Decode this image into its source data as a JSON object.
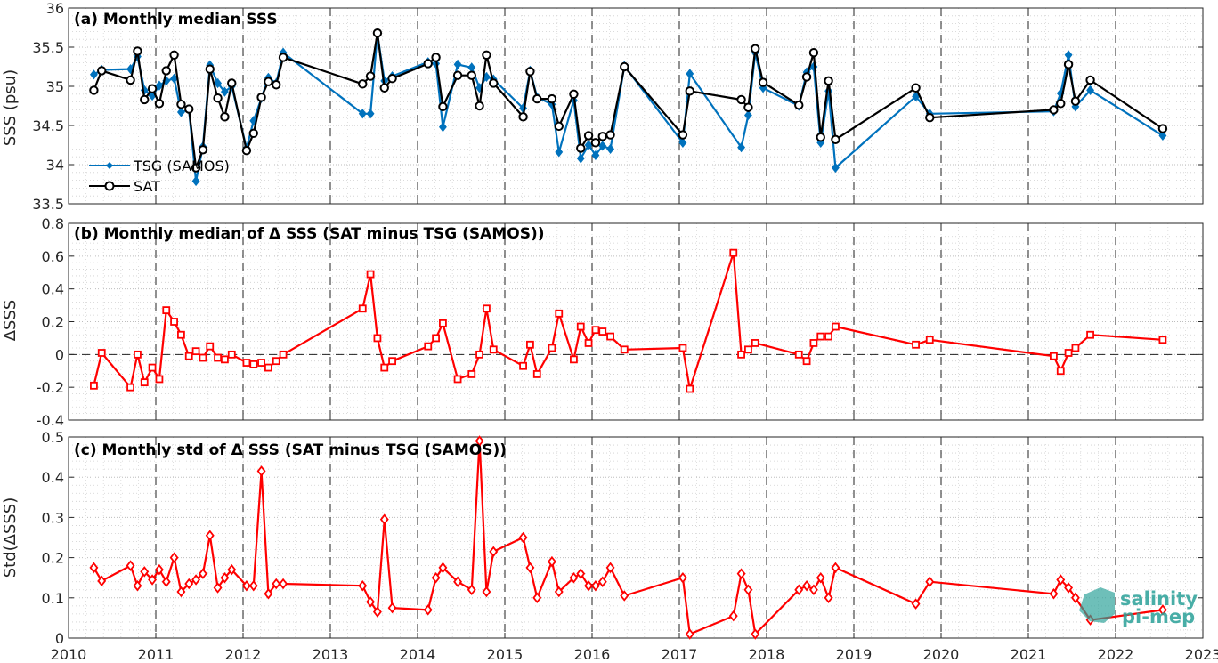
{
  "chart_data": [
    {
      "type": "line",
      "title": "(a) Monthly median SSS",
      "ylabel": "SSS (psu)",
      "ylim": [
        33.5,
        36
      ],
      "yticks": [
        "33.5",
        "34",
        "34.5",
        "35",
        "35.5",
        "36"
      ],
      "xlim": [
        2010,
        2023
      ],
      "legend": {
        "placement": "bottom-left"
      },
      "series": [
        {
          "name": "TSG (SAMOS)",
          "color": "#0072BD",
          "marker": "diamond",
          "x": [
            2010.29,
            2010.38,
            2010.71,
            2010.79,
            2010.87,
            2010.96,
            2011.04,
            2011.12,
            2011.21,
            2011.29,
            2011.38,
            2011.46,
            2011.54,
            2011.62,
            2011.71,
            2011.79,
            2011.87,
            2012.04,
            2012.12,
            2012.21,
            2012.29,
            2012.38,
            2012.46,
            2013.37,
            2013.46,
            2013.54,
            2013.62,
            2013.71,
            2014.12,
            2014.21,
            2014.29,
            2014.46,
            2014.62,
            2014.71,
            2014.79,
            2014.87,
            2015.21,
            2015.29,
            2015.37,
            2015.54,
            2015.62,
            2015.79,
            2015.87,
            2015.96,
            2016.04,
            2016.12,
            2016.21,
            2016.37,
            2017.04,
            2017.12,
            2017.71,
            2017.79,
            2017.87,
            2017.96,
            2018.37,
            2018.46,
            2018.54,
            2018.62,
            2018.71,
            2018.79,
            2019.71,
            2019.87,
            2021.29,
            2021.37,
            2021.46,
            2021.54,
            2021.71,
            2022.54
          ],
          "values": [
            35.15,
            35.21,
            35.22,
            35.38,
            34.95,
            34.88,
            35.01,
            35.07,
            35.1,
            34.67,
            34.7,
            33.79,
            34.23,
            35.27,
            35.04,
            34.93,
            35.0,
            34.21,
            34.56,
            34.85,
            35.11,
            35.04,
            35.43,
            34.65,
            34.65,
            35.67,
            35.07,
            35.13,
            35.31,
            35.29,
            34.48,
            35.28,
            35.24,
            34.98,
            35.12,
            35.09,
            34.72,
            35.2,
            34.86,
            34.77,
            34.16,
            34.82,
            34.08,
            34.25,
            34.12,
            34.24,
            34.2,
            35.26,
            34.28,
            35.16,
            34.22,
            34.63,
            35.43,
            34.98,
            34.75,
            35.18,
            35.25,
            34.28,
            34.94,
            33.96,
            34.87,
            34.65,
            34.68,
            34.91,
            35.4,
            34.74,
            34.95,
            34.37
          ]
        },
        {
          "name": "SAT",
          "color": "#000000",
          "marker": "circle",
          "x": [
            2010.29,
            2010.38,
            2010.71,
            2010.79,
            2010.87,
            2010.96,
            2011.04,
            2011.12,
            2011.21,
            2011.29,
            2011.38,
            2011.46,
            2011.54,
            2011.62,
            2011.71,
            2011.79,
            2011.87,
            2012.04,
            2012.12,
            2012.21,
            2012.29,
            2012.38,
            2012.46,
            2013.37,
            2013.46,
            2013.54,
            2013.62,
            2013.71,
            2014.12,
            2014.21,
            2014.29,
            2014.46,
            2014.62,
            2014.71,
            2014.79,
            2014.87,
            2015.21,
            2015.29,
            2015.37,
            2015.54,
            2015.62,
            2015.79,
            2015.87,
            2015.96,
            2016.04,
            2016.12,
            2016.21,
            2016.37,
            2017.04,
            2017.12,
            2017.71,
            2017.79,
            2017.87,
            2017.96,
            2018.37,
            2018.46,
            2018.54,
            2018.62,
            2018.71,
            2018.79,
            2019.71,
            2019.87,
            2021.29,
            2021.37,
            2021.46,
            2021.54,
            2021.71,
            2022.54
          ],
          "values": [
            34.95,
            35.2,
            35.08,
            35.45,
            34.83,
            34.97,
            34.78,
            35.2,
            35.4,
            34.77,
            34.71,
            33.96,
            34.19,
            35.22,
            34.85,
            34.61,
            35.04,
            34.18,
            34.4,
            34.86,
            35.06,
            35.02,
            35.37,
            35.03,
            35.13,
            35.68,
            34.98,
            35.1,
            35.29,
            35.37,
            34.74,
            35.14,
            35.14,
            34.75,
            35.4,
            35.04,
            34.61,
            35.19,
            34.84,
            34.84,
            34.49,
            34.9,
            34.21,
            34.37,
            34.28,
            34.36,
            34.38,
            35.25,
            34.38,
            34.94,
            34.83,
            34.73,
            35.48,
            35.05,
            34.76,
            35.12,
            35.43,
            34.35,
            35.07,
            34.32,
            34.98,
            34.6,
            34.7,
            34.78,
            35.28,
            34.81,
            35.08,
            34.46
          ]
        }
      ]
    },
    {
      "type": "line",
      "title": "(b) Monthly median of Δ SSS (SAT minus TSG (SAMOS))",
      "ylabel": "ΔSSS",
      "ylim": [
        -0.4,
        0.8
      ],
      "yticks": [
        "-0.4",
        "-0.2",
        "0",
        "0.2",
        "0.4",
        "0.6",
        "0.8"
      ],
      "xlim": [
        2010,
        2023
      ],
      "zero_line": true,
      "series": [
        {
          "color": "#FF0000",
          "marker": "square",
          "x": [
            2010.29,
            2010.38,
            2010.71,
            2010.79,
            2010.87,
            2010.96,
            2011.04,
            2011.12,
            2011.21,
            2011.29,
            2011.38,
            2011.46,
            2011.54,
            2011.62,
            2011.71,
            2011.79,
            2011.87,
            2012.04,
            2012.12,
            2012.21,
            2012.29,
            2012.38,
            2012.46,
            2013.37,
            2013.46,
            2013.54,
            2013.62,
            2013.71,
            2014.12,
            2014.21,
            2014.29,
            2014.46,
            2014.62,
            2014.71,
            2014.79,
            2014.87,
            2015.21,
            2015.29,
            2015.37,
            2015.54,
            2015.62,
            2015.79,
            2015.87,
            2015.96,
            2016.04,
            2016.12,
            2016.21,
            2016.37,
            2017.04,
            2017.12,
            2017.62,
            2017.71,
            2017.79,
            2017.87,
            2018.37,
            2018.46,
            2018.54,
            2018.62,
            2018.71,
            2018.79,
            2019.71,
            2019.87,
            2021.29,
            2021.37,
            2021.46,
            2021.54,
            2021.71,
            2022.54
          ],
          "values": [
            -0.19,
            0.01,
            -0.2,
            0.0,
            -0.17,
            -0.08,
            -0.15,
            0.27,
            0.2,
            0.12,
            -0.01,
            0.02,
            -0.02,
            0.05,
            -0.02,
            -0.03,
            0.0,
            -0.05,
            -0.06,
            -0.05,
            -0.08,
            -0.04,
            0.0,
            0.28,
            0.49,
            0.1,
            -0.08,
            -0.04,
            0.05,
            0.1,
            0.19,
            -0.15,
            -0.12,
            0.0,
            0.28,
            0.03,
            -0.07,
            0.06,
            -0.12,
            0.04,
            0.25,
            -0.03,
            0.17,
            0.07,
            0.15,
            0.14,
            0.11,
            0.03,
            0.04,
            -0.21,
            0.62,
            0.0,
            0.03,
            0.07,
            0.0,
            -0.04,
            0.07,
            0.11,
            0.11,
            0.17,
            0.06,
            0.09,
            -0.01,
            -0.1,
            0.01,
            0.04,
            0.12,
            0.09
          ]
        }
      ]
    },
    {
      "type": "line",
      "title": "(c) Monthly std of Δ SSS (SAT minus TSG (SAMOS))",
      "ylabel": "Std(ΔSSS)",
      "ylim": [
        0,
        0.5
      ],
      "yticks": [
        "0",
        "0.1",
        "0.2",
        "0.3",
        "0.4",
        "0.5"
      ],
      "xlim": [
        2010,
        2023
      ],
      "xticks": [
        "2010",
        "2011",
        "2012",
        "2013",
        "2014",
        "2015",
        "2016",
        "2017",
        "2018",
        "2019",
        "2020",
        "2021",
        "2022",
        "2023"
      ],
      "series": [
        {
          "color": "#FF0000",
          "marker": "diamond",
          "x": [
            2010.29,
            2010.38,
            2010.71,
            2010.79,
            2010.87,
            2010.96,
            2011.04,
            2011.12,
            2011.21,
            2011.29,
            2011.38,
            2011.46,
            2011.54,
            2011.62,
            2011.71,
            2011.79,
            2011.87,
            2012.04,
            2012.12,
            2012.21,
            2012.29,
            2012.38,
            2012.46,
            2013.37,
            2013.46,
            2013.54,
            2013.62,
            2013.71,
            2014.12,
            2014.21,
            2014.29,
            2014.46,
            2014.62,
            2014.71,
            2014.79,
            2014.87,
            2015.21,
            2015.29,
            2015.37,
            2015.54,
            2015.62,
            2015.79,
            2015.87,
            2015.96,
            2016.04,
            2016.12,
            2016.21,
            2016.37,
            2017.04,
            2017.12,
            2017.62,
            2017.71,
            2017.79,
            2017.87,
            2018.37,
            2018.46,
            2018.54,
            2018.62,
            2018.71,
            2018.79,
            2019.71,
            2019.87,
            2021.29,
            2021.37,
            2021.46,
            2021.54,
            2021.71,
            2022.54
          ],
          "values": [
            0.175,
            0.142,
            0.18,
            0.13,
            0.165,
            0.145,
            0.17,
            0.14,
            0.2,
            0.115,
            0.135,
            0.145,
            0.16,
            0.255,
            0.125,
            0.15,
            0.17,
            0.13,
            0.13,
            0.415,
            0.11,
            0.135,
            0.135,
            0.13,
            0.09,
            0.065,
            0.295,
            0.075,
            0.07,
            0.15,
            0.175,
            0.14,
            0.12,
            0.49,
            0.115,
            0.215,
            0.25,
            0.175,
            0.1,
            0.19,
            0.115,
            0.15,
            0.16,
            0.13,
            0.13,
            0.14,
            0.175,
            0.105,
            0.15,
            0.01,
            0.055,
            0.16,
            0.12,
            0.01,
            0.12,
            0.13,
            0.12,
            0.15,
            0.1,
            0.175,
            0.085,
            0.14,
            0.11,
            0.145,
            0.125,
            0.1,
            0.045,
            0.07
          ]
        }
      ]
    }
  ],
  "logo": {
    "line1": "salinity",
    "line2": "pi-mep",
    "color": "#2aa198"
  }
}
